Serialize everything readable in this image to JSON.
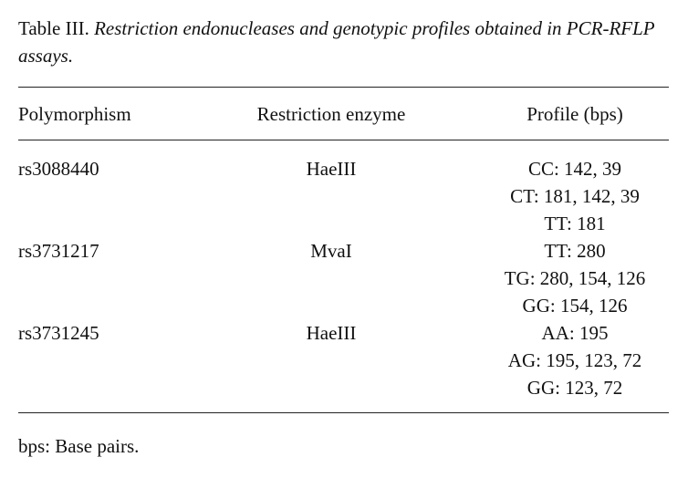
{
  "caption": {
    "label": "Table III.",
    "text": "Restriction endonucleases and genotypic profiles obtained in PCR-RFLP assays."
  },
  "table": {
    "header": [
      "Polymorphism",
      "Restriction enzyme",
      "Profile (bps)"
    ],
    "rows": [
      {
        "polymorphism": "rs3088440",
        "enzyme": "HaeIII",
        "profiles": [
          "CC: 142, 39",
          "CT: 181, 142, 39",
          "TT: 181"
        ]
      },
      {
        "polymorphism": "rs3731217",
        "enzyme": "MvaI",
        "profiles": [
          "TT: 280",
          "TG: 280, 154, 126",
          "GG: 154, 126"
        ]
      },
      {
        "polymorphism": "rs3731245",
        "enzyme": "HaeIII",
        "profiles": [
          "AA: 195",
          "AG: 195, 123, 72",
          "GG: 123, 72"
        ]
      }
    ]
  },
  "footnote": "bps: Base pairs."
}
